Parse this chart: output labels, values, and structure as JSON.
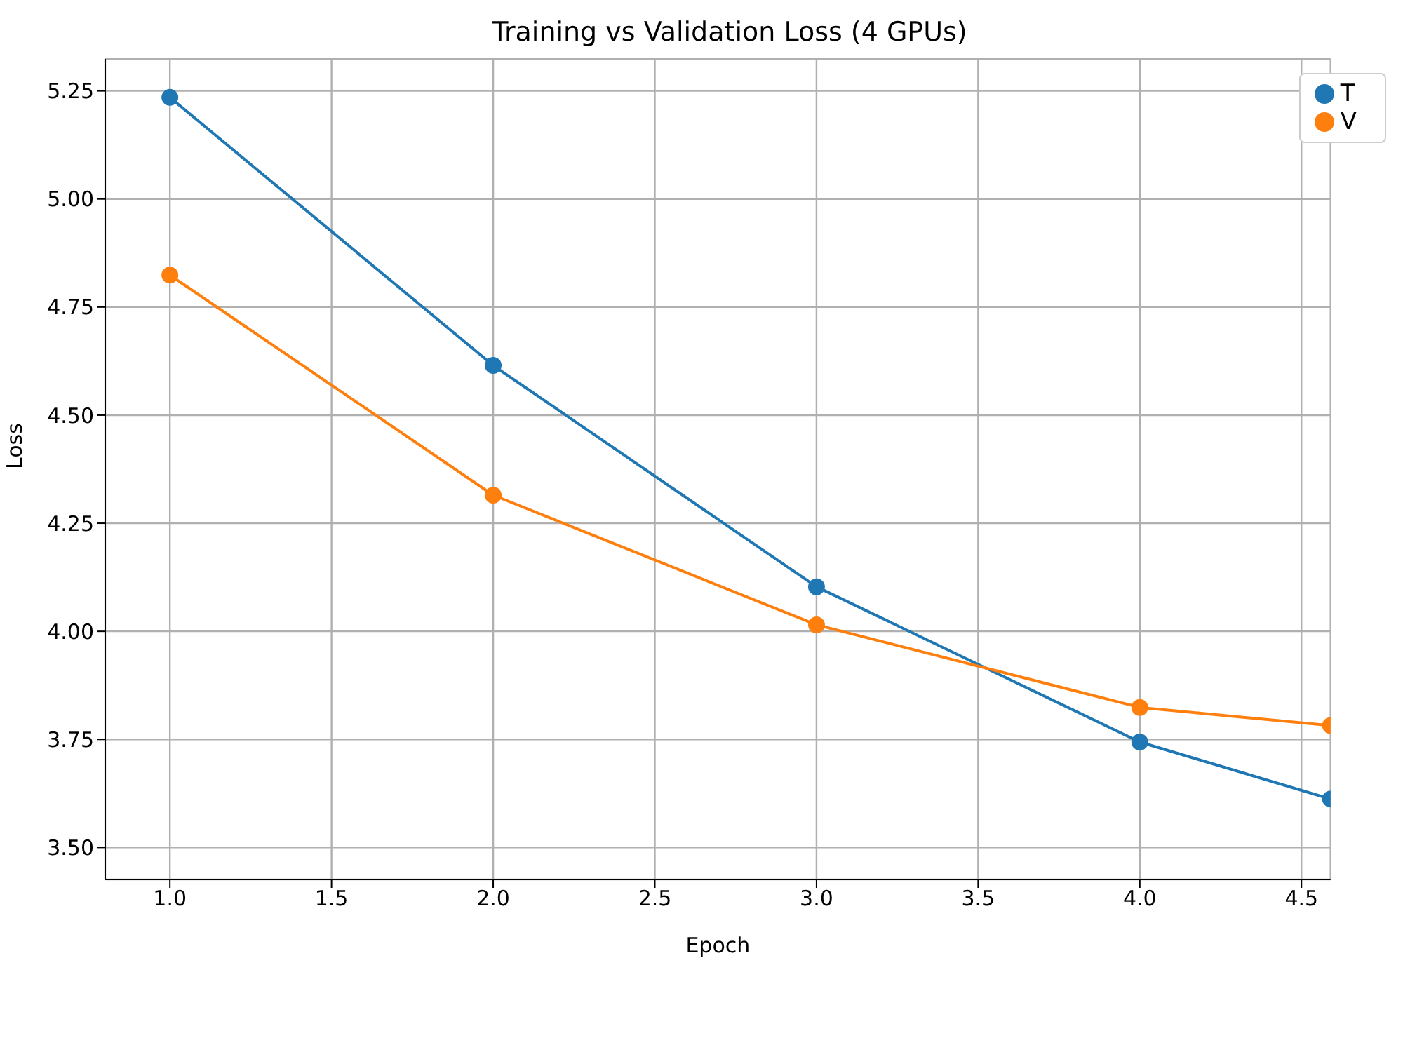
{
  "chart_data": {
    "type": "line",
    "title": "Training vs Validation Loss (4 GPUs)",
    "xlabel": "Epoch",
    "ylabel": "Loss",
    "x": [
      1,
      2,
      3,
      4,
      4.59
    ],
    "series": [
      {
        "name": "T",
        "color": "#1f77b4",
        "values": [
          5.235,
          4.615,
          4.103,
          3.744,
          3.612
        ]
      },
      {
        "name": "V",
        "color": "#ff7f0e",
        "values": [
          4.824,
          4.315,
          4.015,
          3.824,
          3.782
        ]
      }
    ],
    "xlim": [
      0.8,
      4.59
    ],
    "ylim": [
      3.426,
      5.324
    ],
    "xticks": [
      {
        "value": 1,
        "label": "1.0"
      },
      1.5,
      {
        "value": 2,
        "label": "2.0"
      },
      2.5,
      {
        "value": 3,
        "label": "3.0"
      },
      3.5,
      {
        "value": 4,
        "label": "4.0"
      },
      4.5
    ],
    "yticks": [
      {
        "value": 3.5,
        "label": "3.50"
      },
      3.75,
      {
        "value": 4,
        "label": "4.00"
      },
      4.25,
      {
        "value": 4.5,
        "label": "4.50"
      },
      4.75,
      {
        "value": 5,
        "label": "5.00"
      },
      5.25
    ],
    "grid": true,
    "legend": "top right",
    "marker": "circle",
    "line_style": "solid"
  }
}
